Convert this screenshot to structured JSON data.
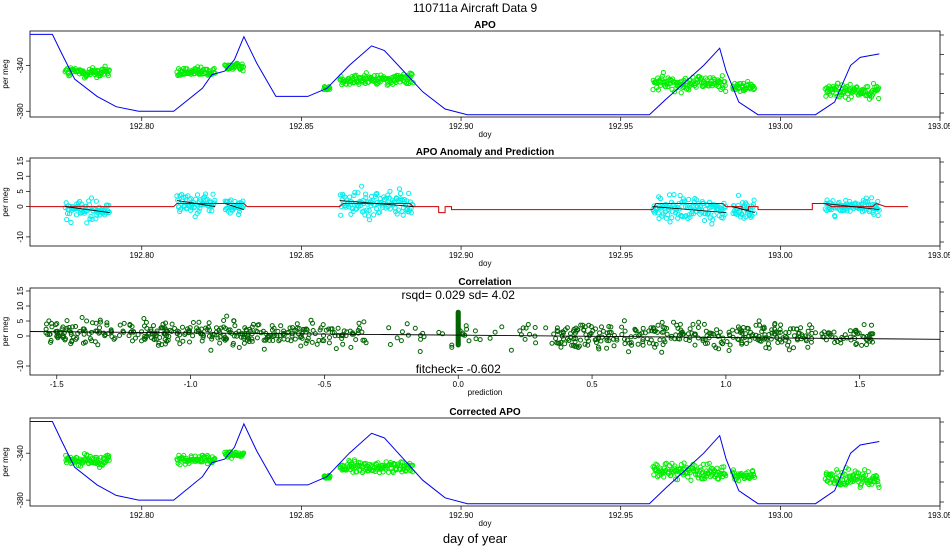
{
  "main_title": "110711a    Aircraft Data 9",
  "footer_label": "day of year",
  "colors": {
    "obs_green": "#00ee00",
    "model_blue": "#0000ee",
    "anomaly_cyan": "#00eeee",
    "prediction_red": "#cc0000",
    "corr_green": "#006400",
    "fit_line": "#000000"
  },
  "chart_data": [
    {
      "id": "apo",
      "type": "scatter",
      "title": "APO",
      "xlabel": "doy",
      "ylabel": "per meg",
      "xlim": [
        192.765,
        193.05
      ],
      "ylim": [
        -385,
        -310
      ],
      "xticks": [
        "192.80",
        "192.85",
        "192.90",
        "192.95",
        "193.00",
        "193.05"
      ],
      "yticks": [
        "-340",
        "-380"
      ],
      "observed_segments": [
        {
          "x_start": 192.776,
          "x_end": 192.79,
          "y_mean": -346,
          "y_spread": 6
        },
        {
          "x_start": 192.811,
          "x_end": 192.823,
          "y_mean": -346,
          "y_spread": 5
        },
        {
          "x_start": 192.826,
          "x_end": 192.832,
          "y_mean": -341,
          "y_spread": 4
        },
        {
          "x_start": 192.857,
          "x_end": 192.859,
          "y_mean": -360,
          "y_spread": 2
        },
        {
          "x_start": 192.862,
          "x_end": 192.885,
          "y_mean": -352,
          "y_spread": 6
        },
        {
          "x_start": 192.96,
          "x_end": 192.983,
          "y_mean": -355,
          "y_spread": 8
        },
        {
          "x_start": 192.985,
          "x_end": 192.992,
          "y_mean": -359,
          "y_spread": 5
        },
        {
          "x_start": 193.014,
          "x_end": 193.031,
          "y_mean": -362,
          "y_spread": 8
        }
      ],
      "model_line": {
        "x": [
          192.765,
          192.772,
          192.775,
          192.779,
          192.786,
          192.792,
          192.799,
          192.81,
          192.819,
          192.822,
          192.826,
          192.829,
          192.832,
          192.836,
          192.842,
          192.848,
          192.852,
          192.858,
          192.865,
          192.872,
          192.876,
          192.882,
          192.888,
          192.895,
          192.902,
          192.917,
          192.935,
          192.951,
          192.959,
          192.964,
          192.97,
          192.976,
          192.981,
          192.983,
          192.987,
          192.993,
          193.0,
          193.011,
          193.017,
          193.022,
          193.025,
          193.031
        ],
        "y": [
          -313,
          -313,
          -330,
          -352,
          -367,
          -376,
          -380,
          -380,
          -360,
          -348,
          -345,
          -335,
          -315,
          -338,
          -367,
          -367,
          -367,
          -360,
          -340,
          -323,
          -327,
          -345,
          -363,
          -378,
          -383,
          -383,
          -383,
          -383,
          -383,
          -370,
          -355,
          -340,
          -325,
          -345,
          -372,
          -383,
          -383,
          -383,
          -372,
          -340,
          -333,
          -330
        ]
      }
    },
    {
      "id": "anomaly",
      "type": "scatter",
      "title": "APO Anomaly and Prediction",
      "xlabel": "doy",
      "ylabel": "per meg",
      "xlim": [
        192.765,
        193.05
      ],
      "ylim": [
        -13,
        16
      ],
      "xticks": [
        "192.80",
        "192.85",
        "192.90",
        "192.95",
        "193.00",
        "193.05"
      ],
      "yticks": [
        "15",
        "10",
        "5",
        "0",
        "-10"
      ],
      "observed_segments": [
        {
          "x_start": 192.776,
          "x_end": 192.79,
          "y_mean": -1,
          "y_spread": 4
        },
        {
          "x_start": 192.811,
          "x_end": 192.823,
          "y_mean": 1,
          "y_spread": 4
        },
        {
          "x_start": 192.826,
          "x_end": 192.832,
          "y_mean": 0,
          "y_spread": 3
        },
        {
          "x_start": 192.862,
          "x_end": 192.885,
          "y_mean": 1,
          "y_spread": 5
        },
        {
          "x_start": 192.96,
          "x_end": 192.983,
          "y_mean": -1,
          "y_spread": 5
        },
        {
          "x_start": 192.985,
          "x_end": 192.992,
          "y_mean": -1,
          "y_spread": 4
        },
        {
          "x_start": 193.014,
          "x_end": 193.031,
          "y_mean": 0,
          "y_spread": 3
        }
      ],
      "prediction_line": {
        "x": [
          192.765,
          192.81,
          192.811,
          192.832,
          192.833,
          192.862,
          192.863,
          192.884,
          192.885,
          192.893,
          192.893,
          192.895,
          192.895,
          192.897,
          192.897,
          192.96,
          192.961,
          192.982,
          192.983,
          192.988,
          192.988,
          192.99,
          192.99,
          192.993,
          192.993,
          193.01,
          193.01,
          193.014,
          193.016,
          193.029,
          193.03,
          193.033,
          193.034,
          193.04
        ],
        "y": [
          0,
          0,
          1,
          1,
          0,
          0,
          1,
          1,
          0,
          0,
          -2,
          -2,
          0,
          0,
          -1,
          -1,
          1,
          1,
          0,
          0,
          -1,
          -1,
          0,
          0,
          -1,
          -1,
          1,
          1,
          0,
          0,
          1,
          0,
          0,
          0
        ]
      }
    },
    {
      "id": "correlation",
      "type": "scatter",
      "title": "Correlation",
      "xlabel": "prediction",
      "ylabel": "per meg",
      "xlim": [
        -1.6,
        1.8
      ],
      "ylim": [
        -13,
        16
      ],
      "xticks": [
        "-1.5",
        "-1.0",
        "-0.5",
        "0.0",
        "0.5",
        "1.0",
        "1.5"
      ],
      "yticks": [
        "15",
        "10",
        "5",
        "0",
        "-10"
      ],
      "fit": {
        "x": [
          -1.6,
          1.8
        ],
        "y": [
          1.5,
          -1.1
        ]
      },
      "rsqd_text": "rsqd= 0.029 sd= 4.02",
      "fitcheck_text": "fitcheck= -0.602"
    },
    {
      "id": "corrected",
      "type": "scatter",
      "title": "Corrected APO",
      "xlabel": "doy",
      "ylabel": "per meg",
      "xlim": [
        192.765,
        193.05
      ],
      "ylim": [
        -385,
        -310
      ],
      "xticks": [
        "192.80",
        "192.85",
        "192.90",
        "192.95",
        "193.00",
        "193.05"
      ],
      "yticks": [
        "-340",
        "-380"
      ]
    }
  ]
}
